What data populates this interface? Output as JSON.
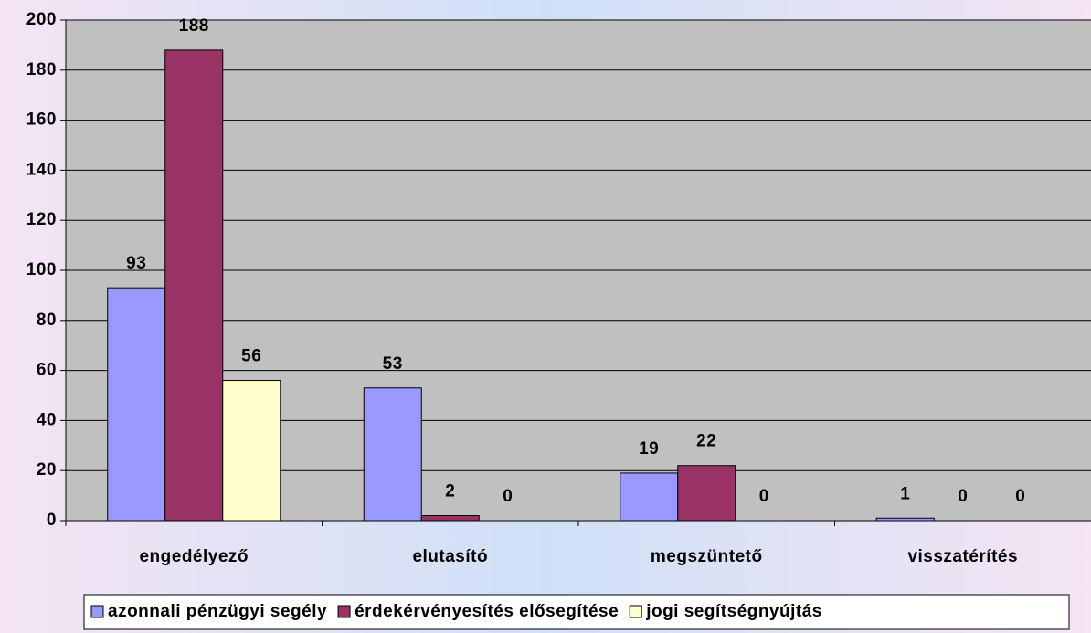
{
  "chart_data": {
    "type": "bar",
    "categories": [
      "engedélyező",
      "elutasító",
      "megszüntető",
      "visszatérítés"
    ],
    "series": [
      {
        "name": "azonnali pénzügyi segély",
        "color": "#9999ff",
        "values": [
          93,
          53,
          19,
          1
        ]
      },
      {
        "name": "érdekérvényesítés elősegítése",
        "color": "#993366",
        "values": [
          188,
          2,
          22,
          0
        ]
      },
      {
        "name": "jogi segítségnyújtás",
        "color": "#ffffcc",
        "values": [
          56,
          0,
          0,
          0
        ]
      }
    ],
    "ylim": [
      0,
      200
    ],
    "yticks": [
      0,
      20,
      40,
      60,
      80,
      100,
      120,
      140,
      160,
      180,
      200
    ],
    "grid": true,
    "legend": "bottom",
    "plot_background": "#c0c0c0"
  }
}
